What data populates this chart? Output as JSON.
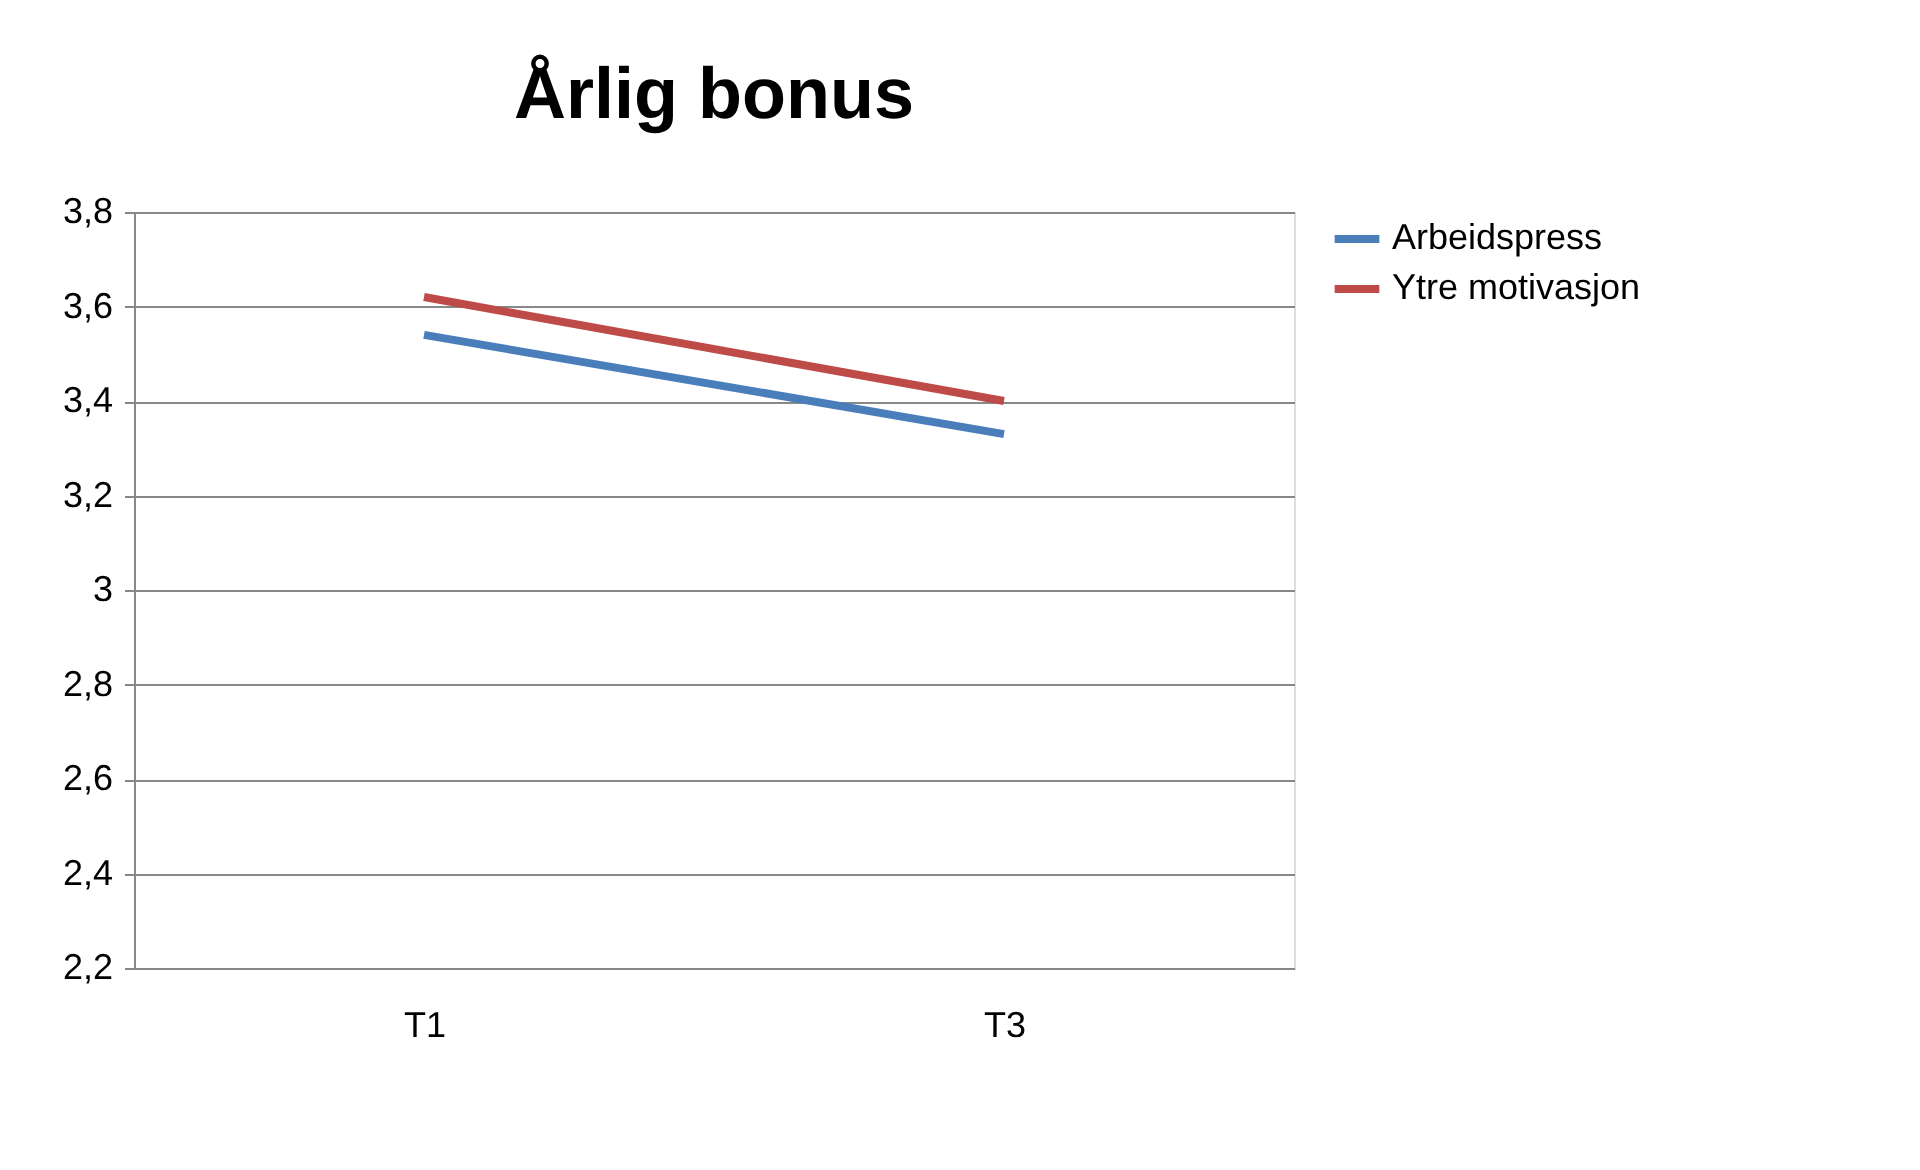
{
  "chart_data": {
    "type": "line",
    "title": "Årlig bonus",
    "categories": [
      "T1",
      "T3"
    ],
    "series": [
      {
        "name": "Arbeidspress",
        "color": "#4a7ebb",
        "values": [
          3.54,
          3.33
        ]
      },
      {
        "name": "Ytre motivasjon",
        "color": "#be4b48",
        "values": [
          3.62,
          3.4
        ]
      }
    ],
    "ylim": [
      2.2,
      3.8
    ],
    "yticks": [
      {
        "value": 2.2,
        "label": "2,2"
      },
      {
        "value": 2.4,
        "label": "2,4"
      },
      {
        "value": 2.6,
        "label": "2,6"
      },
      {
        "value": 2.8,
        "label": "2,8"
      },
      3,
      {
        "value": 3.2,
        "label": "3,2"
      },
      {
        "value": 3.4,
        "label": "3,4"
      },
      {
        "value": 3.6,
        "label": "3,6"
      },
      {
        "value": 3.8,
        "label": "3,8"
      }
    ],
    "grid": "y",
    "legend": "right",
    "marker": "none",
    "line_style": "solid"
  }
}
